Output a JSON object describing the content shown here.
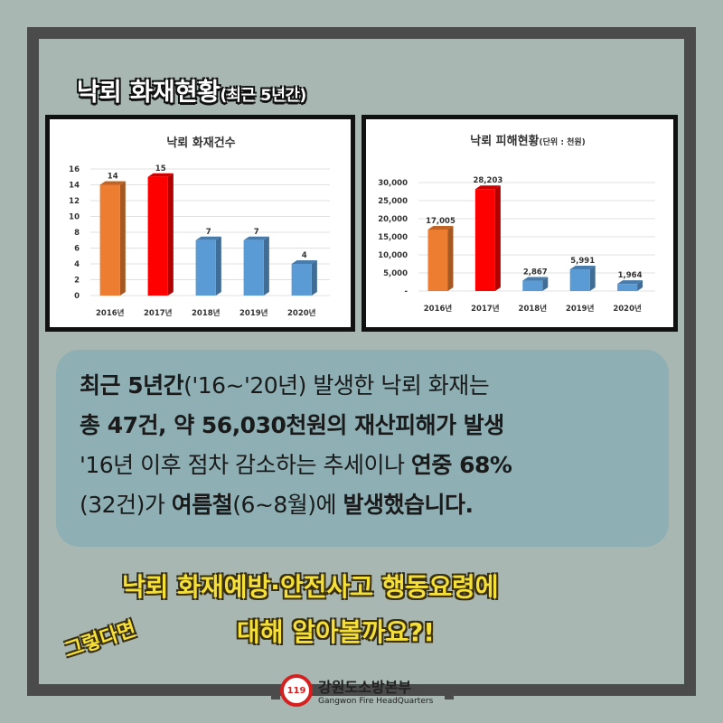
{
  "title": {
    "main": "낙뢰 화재현황",
    "sub": "(최근 5년간)"
  },
  "chart_data": [
    {
      "type": "bar",
      "title": "낙뢰 화재건수",
      "categories": [
        "2016년",
        "2017년",
        "2018년",
        "2019년",
        "2020년"
      ],
      "values": [
        14,
        15,
        7,
        7,
        4
      ],
      "ylim": [
        0,
        16
      ],
      "yticks": [
        "0",
        "2",
        "4",
        "6",
        "8",
        "10",
        "12",
        "14",
        "16"
      ],
      "grid": true,
      "colors": [
        "#ed7d31",
        "#ff0000",
        "#5b9bd5",
        "#5b9bd5",
        "#5b9bd5"
      ],
      "data_labels": [
        "14",
        "15",
        "7",
        "7",
        "4"
      ]
    },
    {
      "type": "bar",
      "title": "낙뢰 피해현황",
      "title_unit": "(단위 : 천원)",
      "categories": [
        "2016년",
        "2017년",
        "2018년",
        "2019년",
        "2020년"
      ],
      "values": [
        17005,
        28203,
        2867,
        5991,
        1964
      ],
      "ylim": [
        0,
        30000
      ],
      "yticks": [
        "-",
        "5,000",
        "10,000",
        "15,000",
        "20,000",
        "25,000",
        "30,000"
      ],
      "grid": true,
      "colors": [
        "#ed7d31",
        "#ff0000",
        "#5b9bd5",
        "#5b9bd5",
        "#5b9bd5"
      ],
      "data_labels": [
        "17,005",
        "28,203",
        "2,867",
        "5,991",
        "1,964"
      ]
    }
  ],
  "info": {
    "l1a": "최근 5년간",
    "l1b": "('16~'20년) 발생한 낙뢰 화재는",
    "l2": "총 47건, 약 56,030천원의 재산피해가 발생",
    "l3a": "'16년 이후 점차 감소하는 추세이나 ",
    "l3b": "연중 68%",
    "l4a": "(32건)가 ",
    "l4b": "여름철",
    "l4c": "(6~8월)에 ",
    "l4d": "발생했습니다."
  },
  "cta": {
    "line1": "낙뢰 화재예방·안전사고 행동요령에",
    "line2": "대해 알아볼까요?!",
    "aside": "그렇다면"
  },
  "logo": {
    "name": "강원도소방본부",
    "english": "Gangwon Fire HeadQuarters",
    "emblem": "119"
  }
}
